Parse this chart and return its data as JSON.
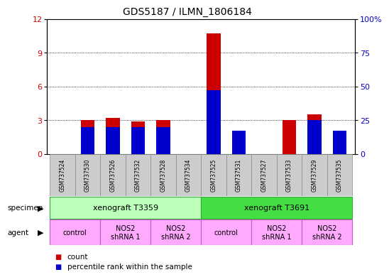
{
  "title": "GDS5187 / ILMN_1806184",
  "samples": [
    "GSM737524",
    "GSM737530",
    "GSM737526",
    "GSM737532",
    "GSM737528",
    "GSM737534",
    "GSM737525",
    "GSM737531",
    "GSM737527",
    "GSM737533",
    "GSM737529",
    "GSM737535"
  ],
  "count_values": [
    0,
    3.0,
    3.2,
    2.9,
    3.0,
    0,
    10.7,
    2.0,
    0,
    3.0,
    3.5,
    2.0
  ],
  "percentile_values": [
    0,
    20,
    20,
    20,
    20,
    0,
    47,
    17,
    0,
    0,
    25,
    17
  ],
  "ylim_left": [
    0,
    12
  ],
  "ylim_right": [
    0,
    100
  ],
  "yticks_left": [
    0,
    3,
    6,
    9,
    12
  ],
  "yticks_right": [
    0,
    25,
    50,
    75,
    100
  ],
  "ytick_labels_left": [
    "0",
    "3",
    "6",
    "9",
    "12"
  ],
  "ytick_labels_right": [
    "0",
    "25",
    "50",
    "75",
    "100%"
  ],
  "bar_color_count": "#cc0000",
  "bar_color_pct": "#0000cc",
  "bar_width": 0.55,
  "specimen_labels": [
    "xenograft T3359",
    "xenograft T3691"
  ],
  "specimen_spans": [
    [
      0,
      5
    ],
    [
      6,
      11
    ]
  ],
  "specimen_color_1": "#bbffbb",
  "specimen_color_2": "#44dd44",
  "agent_color": "#ffaaff",
  "legend_count_label": "count",
  "legend_pct_label": "percentile rank within the sample",
  "specimen_label_text": "specimen",
  "agent_label_text": "agent",
  "background_color": "#ffffff",
  "sample_label_bg": "#cccccc"
}
